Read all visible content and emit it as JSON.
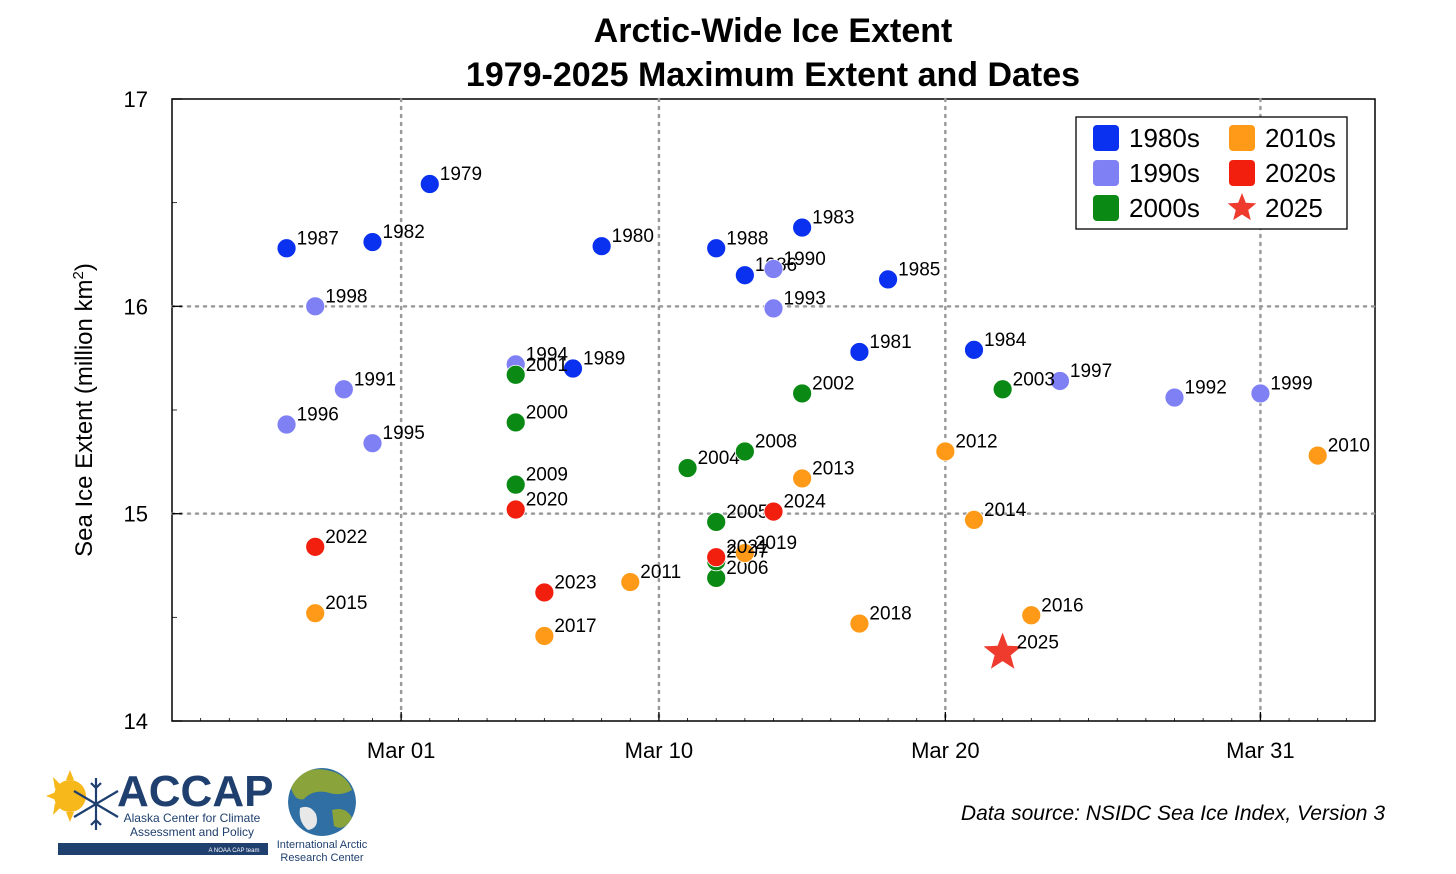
{
  "chart_data": {
    "type": "scatter",
    "title_line1": "Arctic-Wide Ice Extent",
    "title_line2": "1979-2025 Maximum Extent and Dates",
    "ylabel_main": "Sea Ice Extent (million km",
    "ylabel_sup": "2",
    "ylabel_close": ")",
    "xlabel": "",
    "x_is_date": true,
    "xlim": [
      "2025-02-21",
      "2025-04-04"
    ],
    "ylim": [
      14,
      17
    ],
    "x_ticks": [
      {
        "date": "2025-03-01",
        "label": "Mar 01"
      },
      {
        "date": "2025-03-10",
        "label": "Mar 10"
      },
      {
        "date": "2025-03-20",
        "label": "Mar 20"
      },
      {
        "date": "2025-03-31",
        "label": "Mar 31"
      }
    ],
    "y_ticks": [
      14,
      15,
      16,
      17
    ],
    "grid": true,
    "legend_position": "top-right",
    "decade_colors": {
      "1980s": "#0a30f0",
      "1990s": "#8080f5",
      "2000s": "#0a8a14",
      "2010s": "#ff9a18",
      "2020s": "#f21e0e",
      "2025": "#ee3b2e"
    },
    "legend": [
      {
        "label": "1980s",
        "decade": "1980s",
        "marker": "square"
      },
      {
        "label": "1990s",
        "decade": "1990s",
        "marker": "square"
      },
      {
        "label": "2000s",
        "decade": "2000s",
        "marker": "square"
      },
      {
        "label": "2010s",
        "decade": "2010s",
        "marker": "square"
      },
      {
        "label": "2020s",
        "decade": "2020s",
        "marker": "square"
      },
      {
        "label": "2025",
        "decade": "2025",
        "marker": "star"
      }
    ],
    "points": [
      {
        "year": "1979",
        "date": "2025-03-02",
        "extent": 16.59,
        "decade": "1980s"
      },
      {
        "year": "1980",
        "date": "2025-03-08",
        "extent": 16.29,
        "decade": "1980s"
      },
      {
        "year": "1981",
        "date": "2025-03-17",
        "extent": 15.78,
        "decade": "1980s"
      },
      {
        "year": "1982",
        "date": "2025-02-28",
        "extent": 16.31,
        "decade": "1980s"
      },
      {
        "year": "1983",
        "date": "2025-03-15",
        "extent": 16.38,
        "decade": "1980s"
      },
      {
        "year": "1984",
        "date": "2025-03-21",
        "extent": 15.79,
        "decade": "1980s"
      },
      {
        "year": "1985",
        "date": "2025-03-18",
        "extent": 16.13,
        "decade": "1980s"
      },
      {
        "year": "1986",
        "date": "2025-03-13",
        "extent": 16.15,
        "decade": "1980s"
      },
      {
        "year": "1987",
        "date": "2025-02-25",
        "extent": 16.28,
        "decade": "1980s"
      },
      {
        "year": "1988",
        "date": "2025-03-12",
        "extent": 16.28,
        "decade": "1980s"
      },
      {
        "year": "1989",
        "date": "2025-03-07",
        "extent": 15.7,
        "decade": "1980s"
      },
      {
        "year": "1990",
        "date": "2025-03-14",
        "extent": 16.18,
        "decade": "1990s"
      },
      {
        "year": "1991",
        "date": "2025-02-27",
        "extent": 15.6,
        "decade": "1990s"
      },
      {
        "year": "1992",
        "date": "2025-03-28",
        "extent": 15.56,
        "decade": "1990s"
      },
      {
        "year": "1993",
        "date": "2025-03-14",
        "extent": 15.99,
        "decade": "1990s"
      },
      {
        "year": "1994",
        "date": "2025-03-05",
        "extent": 15.72,
        "decade": "1990s"
      },
      {
        "year": "1995",
        "date": "2025-02-28",
        "extent": 15.34,
        "decade": "1990s"
      },
      {
        "year": "1996",
        "date": "2025-02-25",
        "extent": 15.43,
        "decade": "1990s"
      },
      {
        "year": "1997",
        "date": "2025-03-24",
        "extent": 15.64,
        "decade": "1990s"
      },
      {
        "year": "1998",
        "date": "2025-02-26",
        "extent": 16.0,
        "decade": "1990s"
      },
      {
        "year": "1999",
        "date": "2025-03-31",
        "extent": 15.58,
        "decade": "1990s"
      },
      {
        "year": "2000",
        "date": "2025-03-05",
        "extent": 15.44,
        "decade": "2000s"
      },
      {
        "year": "2001",
        "date": "2025-03-05",
        "extent": 15.67,
        "decade": "2000s"
      },
      {
        "year": "2002",
        "date": "2025-03-15",
        "extent": 15.58,
        "decade": "2000s"
      },
      {
        "year": "2003",
        "date": "2025-03-22",
        "extent": 15.6,
        "decade": "2000s"
      },
      {
        "year": "2004",
        "date": "2025-03-11",
        "extent": 15.22,
        "decade": "2000s"
      },
      {
        "year": "2005",
        "date": "2025-03-12",
        "extent": 14.96,
        "decade": "2000s"
      },
      {
        "year": "2006",
        "date": "2025-03-12",
        "extent": 14.69,
        "decade": "2000s"
      },
      {
        "year": "2007",
        "date": "2025-03-12",
        "extent": 14.77,
        "decade": "2000s"
      },
      {
        "year": "2008",
        "date": "2025-03-13",
        "extent": 15.3,
        "decade": "2000s"
      },
      {
        "year": "2009",
        "date": "2025-03-05",
        "extent": 15.14,
        "decade": "2000s"
      },
      {
        "year": "2010",
        "date": "2025-04-02",
        "extent": 15.28,
        "decade": "2010s"
      },
      {
        "year": "2011",
        "date": "2025-03-09",
        "extent": 14.67,
        "decade": "2010s"
      },
      {
        "year": "2012",
        "date": "2025-03-20",
        "extent": 15.3,
        "decade": "2010s"
      },
      {
        "year": "2013",
        "date": "2025-03-15",
        "extent": 15.17,
        "decade": "2010s"
      },
      {
        "year": "2014",
        "date": "2025-03-21",
        "extent": 14.97,
        "decade": "2010s"
      },
      {
        "year": "2015",
        "date": "2025-02-26",
        "extent": 14.52,
        "decade": "2010s"
      },
      {
        "year": "2016",
        "date": "2025-03-23",
        "extent": 14.51,
        "decade": "2010s"
      },
      {
        "year": "2017",
        "date": "2025-03-06",
        "extent": 14.41,
        "decade": "2010s"
      },
      {
        "year": "2018",
        "date": "2025-03-17",
        "extent": 14.47,
        "decade": "2010s"
      },
      {
        "year": "2019",
        "date": "2025-03-13",
        "extent": 14.81,
        "decade": "2010s"
      },
      {
        "year": "2020",
        "date": "2025-03-05",
        "extent": 15.02,
        "decade": "2020s"
      },
      {
        "year": "2021",
        "date": "2025-03-12",
        "extent": 14.79,
        "decade": "2020s"
      },
      {
        "year": "2022",
        "date": "2025-02-26",
        "extent": 14.84,
        "decade": "2020s"
      },
      {
        "year": "2023",
        "date": "2025-03-06",
        "extent": 14.62,
        "decade": "2020s"
      },
      {
        "year": "2024",
        "date": "2025-03-14",
        "extent": 15.01,
        "decade": "2020s"
      },
      {
        "year": "2025",
        "date": "2025-03-22",
        "extent": 14.33,
        "decade": "2025",
        "marker": "star"
      }
    ]
  },
  "footer": {
    "source": "Data source: NSIDC Sea Ice Index, Version 3"
  },
  "logos": {
    "accap_name": "ACCAP",
    "accap_line1": "Alaska Center for Climate",
    "accap_line2": "Assessment and Policy",
    "accap_tag": "A NOAA CAP team",
    "iarc_line1": "International Arctic",
    "iarc_line2": "Research Center"
  }
}
